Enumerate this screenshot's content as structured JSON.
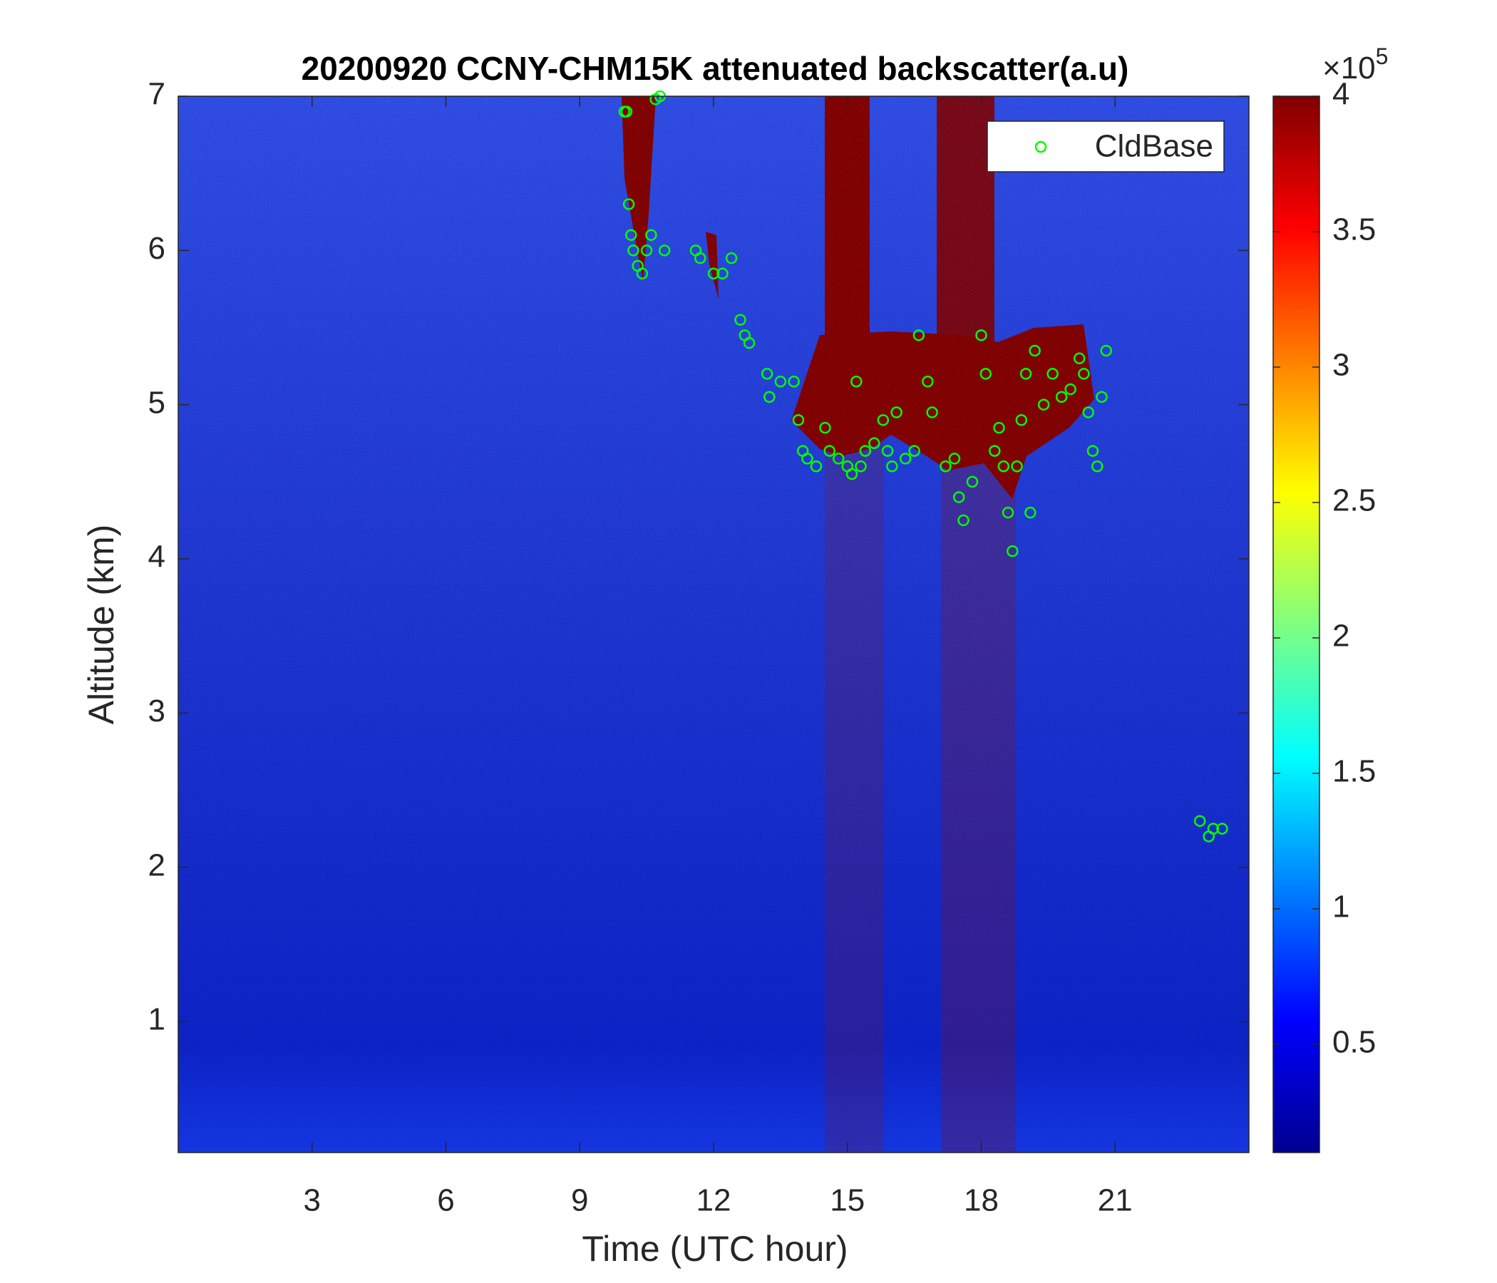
{
  "chart_data": {
    "type": "heatmap",
    "title": "20200920 CCNY-CHM15K attenuated backscatter(a.u)",
    "xlabel": "Time (UTC hour)",
    "ylabel": "Altitude (km)",
    "xlim": [
      0,
      24
    ],
    "xticks": [
      3,
      6,
      9,
      12,
      15,
      18,
      21
    ],
    "ylim": [
      0.15,
      7
    ],
    "yticks": [
      1,
      2,
      3,
      4,
      5,
      6,
      7
    ],
    "colormap": "jet",
    "clim": [
      0.1,
      4
    ],
    "cticks": [
      0.5,
      1,
      1.5,
      2,
      2.5,
      3,
      3.5,
      4
    ],
    "cscale_base": "×10",
    "cscale_exponent": "5",
    "legend": "upper right",
    "series": [
      {
        "name": "CldBase",
        "color": "#00ff00",
        "marker": "circle",
        "x": [
          10.0,
          10.05,
          10.1,
          10.15,
          10.2,
          10.3,
          10.4,
          10.5,
          10.6,
          10.7,
          10.8,
          10.9,
          11.6,
          11.7,
          12.0,
          12.2,
          12.4,
          12.6,
          12.7,
          12.8,
          13.2,
          13.25,
          13.5,
          13.8,
          13.9,
          14.0,
          14.1,
          14.3,
          14.5,
          14.6,
          14.8,
          15.0,
          15.1,
          15.2,
          15.3,
          15.4,
          15.6,
          15.8,
          15.9,
          16.0,
          16.1,
          16.3,
          16.5,
          16.6,
          16.8,
          16.9,
          17.2,
          17.4,
          17.5,
          17.6,
          17.8,
          18.0,
          18.1,
          18.3,
          18.4,
          18.5,
          18.6,
          18.7,
          18.8,
          18.9,
          19.0,
          19.1,
          19.2,
          19.4,
          19.6,
          19.8,
          20.0,
          20.2,
          20.3,
          20.4,
          20.5,
          20.6,
          20.7,
          20.8,
          22.9,
          23.1,
          23.2,
          23.4
        ],
        "values": [
          6.9,
          6.9,
          6.3,
          6.1,
          6.0,
          5.9,
          5.85,
          6.0,
          6.1,
          6.98,
          7.0,
          6.0,
          6.0,
          5.95,
          5.85,
          5.85,
          5.95,
          5.55,
          5.45,
          5.4,
          5.2,
          5.05,
          5.15,
          5.15,
          4.9,
          4.7,
          4.65,
          4.6,
          4.85,
          4.7,
          4.65,
          4.6,
          4.55,
          5.15,
          4.6,
          4.7,
          4.75,
          4.9,
          4.7,
          4.6,
          4.95,
          4.65,
          4.7,
          5.45,
          5.15,
          4.95,
          4.6,
          4.65,
          4.4,
          4.25,
          4.5,
          5.45,
          5.2,
          4.7,
          4.85,
          4.6,
          4.3,
          4.05,
          4.6,
          4.9,
          5.2,
          4.3,
          5.35,
          5.0,
          5.2,
          5.05,
          5.1,
          5.3,
          5.2,
          4.95,
          4.7,
          4.6,
          5.05,
          5.35,
          2.3,
          2.2,
          2.25,
          2.25
        ]
      }
    ]
  }
}
